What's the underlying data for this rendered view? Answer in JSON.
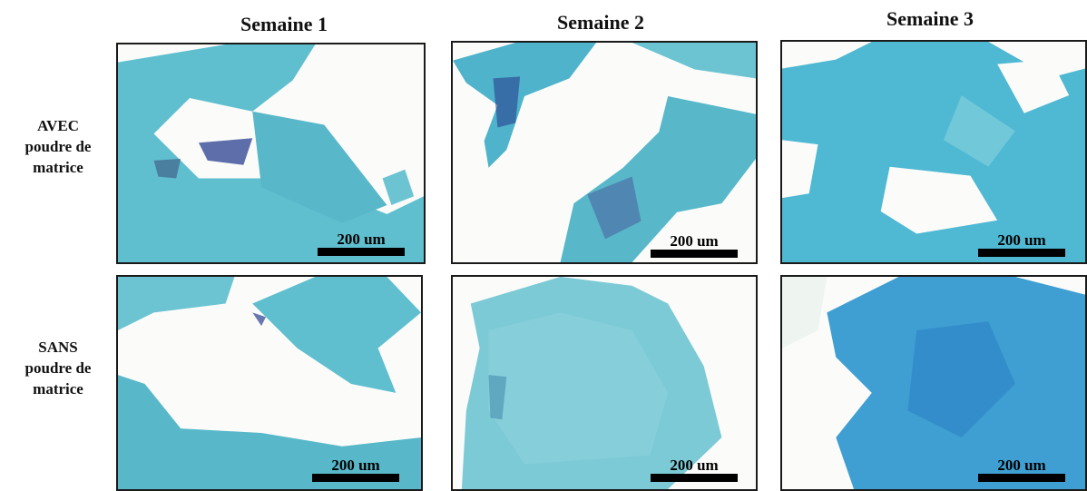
{
  "columns": [
    "Semaine 1",
    "Semaine 2",
    "Semaine 3"
  ],
  "rows": [
    {
      "lines": [
        "AVEC",
        "poudre de",
        "matrice"
      ]
    },
    {
      "lines": [
        "SANS",
        "poudre de",
        "matrice"
      ]
    }
  ],
  "scale_label": "200 um",
  "colors": {
    "tissue": "#5fbfcf",
    "tissue_dark": "#2f9fc4",
    "stain": "#2a3f8f",
    "background": "#fbfcfa"
  }
}
